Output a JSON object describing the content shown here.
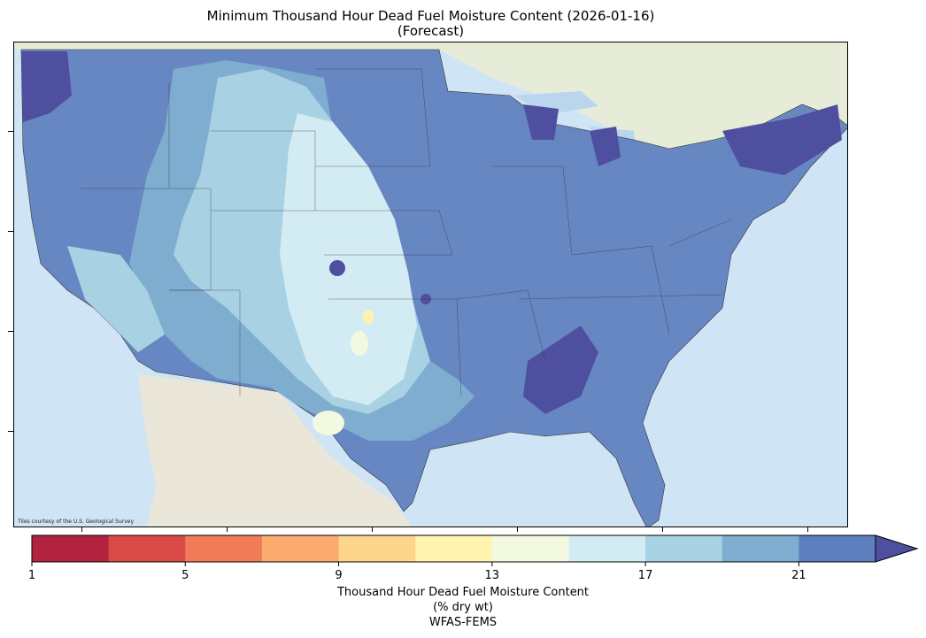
{
  "title_line1": "Minimum Thousand Hour Dead Fuel Moisture Content (2026-01-16)",
  "title_line2": "(Forecast)",
  "attribution": "Tiles courtesy of the U.S. Geological Survey",
  "colorbar": {
    "label_line1": "Thousand Hour Dead Fuel Moisture Content",
    "label_line2": "(% dry wt)",
    "label_line3": "WFAS-FEMS",
    "tick_labels": [
      "1",
      "5",
      "9",
      "13",
      "17",
      "21"
    ],
    "bins": [
      1,
      3,
      5,
      7,
      9,
      11,
      13,
      15,
      17,
      19,
      21,
      23
    ],
    "colors": [
      "#b2233f",
      "#da4a46",
      "#f07c5a",
      "#fbab6d",
      "#fdd68b",
      "#fff3b0",
      "#f2f9e0",
      "#d3ecf3",
      "#a8d1e4",
      "#7fadd0",
      "#5e7fbd",
      "#4f4f9f"
    ],
    "extend": "max"
  },
  "map_colors": {
    "ocean": "#cfe4f5",
    "land_mexico": "#eae6da",
    "land_canada": "#e6ecd7",
    "lakes": "#b9d6ee"
  }
}
